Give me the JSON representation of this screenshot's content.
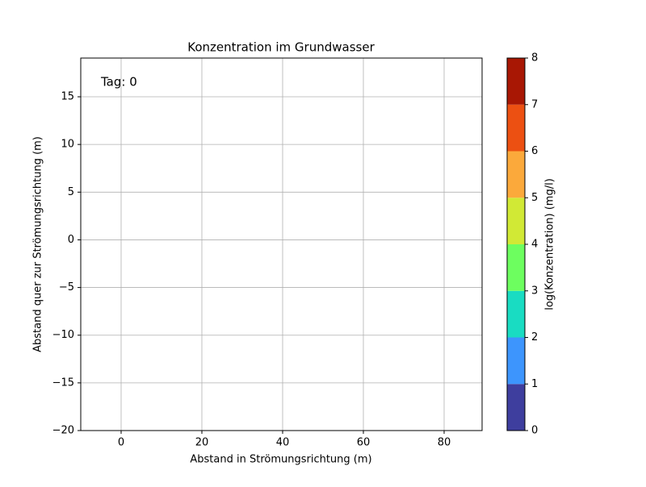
{
  "chart_data": {
    "type": "contourf",
    "title": "Konzentration im Grundwasser",
    "xlabel": "Abstand in Strömungsrichtung (m)",
    "ylabel": "Abstand quer zur Strömungsrichtung (m)",
    "annotation": "Tag: 0",
    "xlim": [
      -10,
      89.4
    ],
    "xticks": [
      0,
      20,
      40,
      60,
      80
    ],
    "ylim": [
      -20,
      19.06
    ],
    "yticks": [
      {
        "value": -20,
        "label": "−20"
      },
      {
        "value": -15,
        "label": "−15"
      },
      {
        "value": -10,
        "label": "−10"
      },
      {
        "value": -5,
        "label": "−5"
      },
      0,
      5,
      10,
      15
    ],
    "grid": true,
    "colorbar": {
      "label": "log(Konzentration) (mg/l)",
      "levels": [
        0,
        1,
        2,
        3,
        4,
        5,
        6,
        7,
        8
      ],
      "colors": [
        "#3e3e9e",
        "#3d95fd",
        "#19dcc2",
        "#6dfe5f",
        "#d1e935",
        "#fba93b",
        "#ec5012",
        "#a81704"
      ]
    }
  }
}
